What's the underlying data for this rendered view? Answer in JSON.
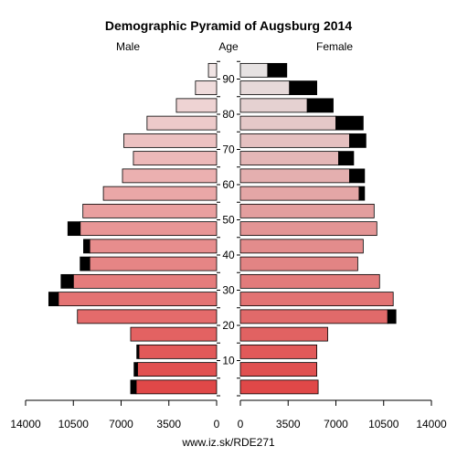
{
  "chart_data": {
    "type": "bar",
    "orientation": "horizontal",
    "title": "Demographic Pyramid of Augsburg 2014",
    "left_label": "Male",
    "center_label": "Age",
    "right_label": "Female",
    "source": "www.iz.sk/RDE271",
    "x_range": [
      0,
      14000
    ],
    "x_ticks_left": [
      "14000",
      "10500",
      "7000",
      "3500",
      "0"
    ],
    "x_ticks_right": [
      "0",
      "3500",
      "7000",
      "10500",
      "14000"
    ],
    "x_tick_values": [
      0,
      3500,
      7000,
      10500,
      14000
    ],
    "age_ticks": [
      "10",
      "20",
      "30",
      "40",
      "50",
      "60",
      "70",
      "80",
      "90"
    ],
    "age_tick_values": [
      10,
      20,
      30,
      40,
      50,
      60,
      70,
      80,
      90
    ],
    "age_groups": [
      2,
      7,
      12,
      17,
      22,
      27,
      32,
      37,
      42,
      47,
      52,
      57,
      62,
      67,
      72,
      77,
      82,
      87,
      92
    ],
    "colors": {
      "male_dark": "#e04848",
      "male_light": "#f0e4e4",
      "female_dark": "#e04848",
      "female_light": "#e6e2e2",
      "excess": "#000000"
    },
    "series": [
      {
        "name": "Male",
        "values": [
          5900,
          5800,
          5700,
          6300,
          10200,
          11600,
          10500,
          9300,
          9300,
          10000,
          9800,
          8300,
          6900,
          6100,
          6800,
          5100,
          2950,
          1550,
          600
        ],
        "excess": [
          400,
          250,
          150,
          0,
          0,
          700,
          900,
          700,
          450,
          900,
          0,
          0,
          0,
          0,
          0,
          0,
          0,
          0,
          0
        ]
      },
      {
        "name": "Female",
        "values": [
          5700,
          5600,
          5600,
          6400,
          10800,
          11200,
          10200,
          8600,
          9000,
          10000,
          9800,
          8700,
          8000,
          7200,
          8000,
          7000,
          4900,
          3600,
          2000
        ],
        "excess": [
          0,
          0,
          0,
          0,
          600,
          0,
          0,
          0,
          0,
          0,
          0,
          400,
          1100,
          1100,
          1200,
          2000,
          1900,
          2000,
          1400
        ]
      }
    ]
  }
}
